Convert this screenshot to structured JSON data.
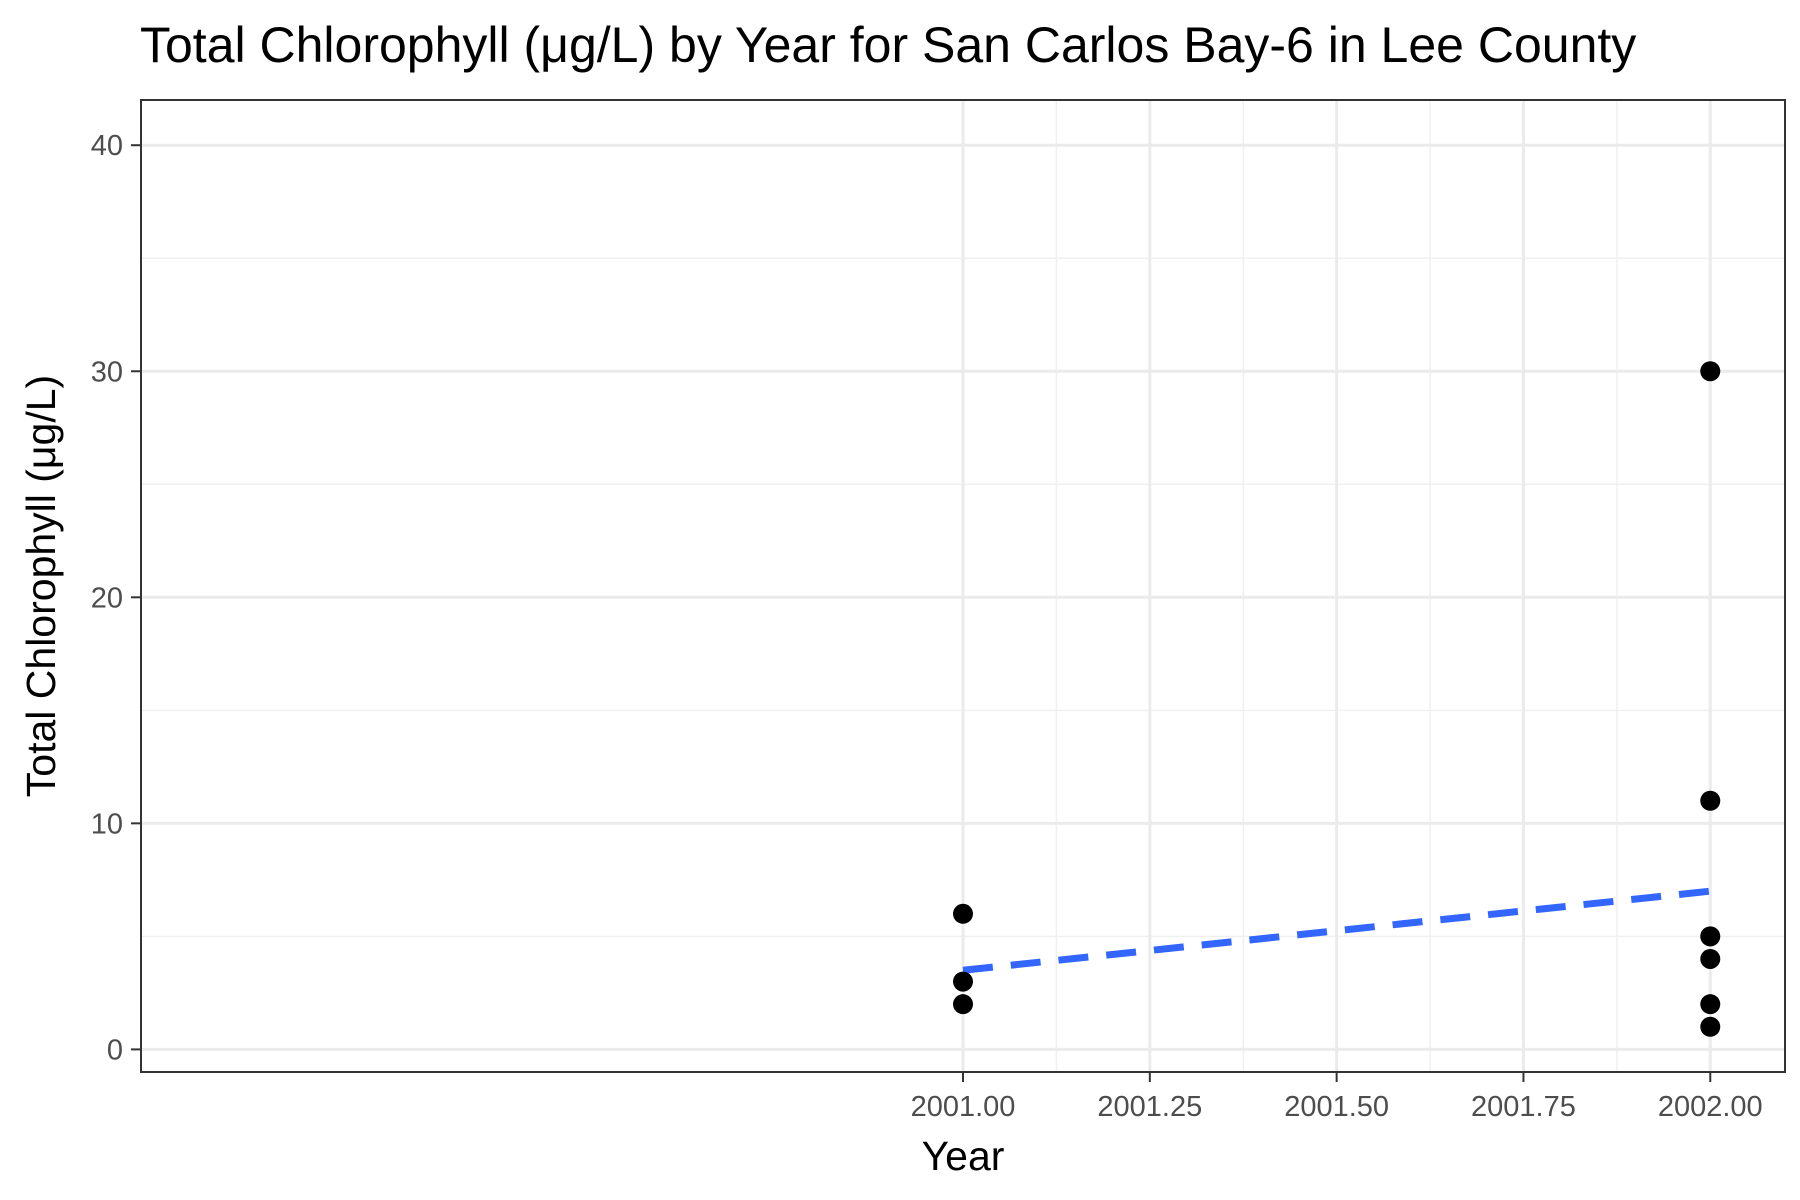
{
  "chart_data": {
    "type": "scatter",
    "title": "Total Chlorophyll (μg/L) by Year for San Carlos Bay-6 in Lee County",
    "xlabel": "Year",
    "ylabel": "Total Chlorophyll (μg/L)",
    "xlim": [
      1999.9,
      2002.1
    ],
    "ylim": [
      -1,
      42
    ],
    "x_ticks": [
      2001.0,
      2001.25,
      2001.5,
      2001.75,
      2002.0
    ],
    "x_tick_labels": [
      "2001.00",
      "2001.25",
      "2001.50",
      "2001.75",
      "2002.00"
    ],
    "y_ticks": [
      0,
      10,
      20,
      30,
      40
    ],
    "y_tick_labels": [
      "0",
      "10",
      "20",
      "30",
      "40"
    ],
    "grid": true,
    "points": [
      {
        "x": 2001.0,
        "y": 6
      },
      {
        "x": 2001.0,
        "y": 3
      },
      {
        "x": 2001.0,
        "y": 2
      },
      {
        "x": 2002.0,
        "y": 30
      },
      {
        "x": 2002.0,
        "y": 11
      },
      {
        "x": 2002.0,
        "y": 5
      },
      {
        "x": 2002.0,
        "y": 4
      },
      {
        "x": 2002.0,
        "y": 2
      },
      {
        "x": 2002.0,
        "y": 1
      }
    ],
    "trend_line": {
      "style": "dashed",
      "color": "#3366ff",
      "x": [
        2001.0,
        2002.0
      ],
      "y": [
        3.5,
        7.0
      ]
    },
    "point_color": "#000000"
  }
}
